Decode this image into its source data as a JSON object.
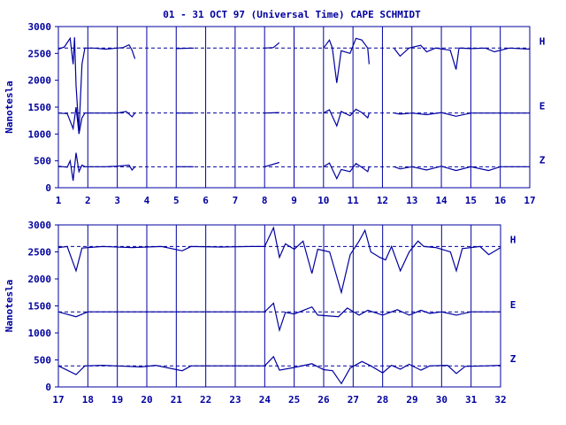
{
  "title": "01 - 31 OCT 97 (Universal Time) CAPE SCHMIDT",
  "colors": {
    "ink": "#0000a0",
    "background": "#ffffff"
  },
  "chart_data": [
    {
      "type": "line",
      "panel": "top",
      "ylabel": "Nanotesla",
      "ylim": [
        0,
        3000
      ],
      "yticks": [
        "0",
        "500",
        "1000",
        "1500",
        "2000",
        "2500",
        "3000"
      ],
      "xlim": [
        1,
        17
      ],
      "xticks": [
        "1",
        "2",
        "3",
        "4",
        "5",
        "6",
        "7",
        "8",
        "9",
        "10",
        "11",
        "12",
        "13",
        "14",
        "15",
        "16",
        "17"
      ],
      "grid": "vertical lines at each day",
      "reference_lines": [
        2600,
        1390,
        390
      ],
      "series": [
        {
          "name": "H",
          "baseline": 2600,
          "points": [
            [
              1,
              2580
            ],
            [
              1.2,
              2620
            ],
            [
              1.4,
              2780
            ],
            [
              1.5,
              2300
            ],
            [
              1.55,
              2800
            ],
            [
              1.6,
              1900
            ],
            [
              1.7,
              1050
            ],
            [
              1.8,
              2300
            ],
            [
              1.9,
              2600
            ],
            [
              2.2,
              2600
            ],
            [
              2.6,
              2580
            ],
            [
              3.0,
              2600
            ],
            [
              3.2,
              2610
            ],
            [
              3.4,
              2660
            ],
            [
              3.5,
              2560
            ],
            [
              3.6,
              2400
            ],
            [
              null,
              null
            ],
            [
              5,
              2590
            ],
            [
              5.6,
              2600
            ],
            [
              null,
              null
            ],
            [
              8,
              2600
            ],
            [
              8.3,
              2610
            ],
            [
              8.5,
              2700
            ],
            [
              null,
              null
            ],
            [
              10,
              2600
            ],
            [
              10.2,
              2750
            ],
            [
              10.3,
              2600
            ],
            [
              10.45,
              1950
            ],
            [
              10.6,
              2550
            ],
            [
              10.9,
              2500
            ],
            [
              11.1,
              2780
            ],
            [
              11.3,
              2750
            ],
            [
              11.5,
              2600
            ],
            [
              11.55,
              2300
            ],
            [
              null,
              null
            ],
            [
              12.4,
              2590
            ],
            [
              12.6,
              2450
            ],
            [
              12.9,
              2600
            ],
            [
              13.3,
              2650
            ],
            [
              13.5,
              2530
            ],
            [
              13.8,
              2600
            ],
            [
              14.3,
              2560
            ],
            [
              14.5,
              2200
            ],
            [
              14.6,
              2600
            ],
            [
              15,
              2590
            ],
            [
              15.5,
              2600
            ],
            [
              15.8,
              2530
            ],
            [
              16.3,
              2600
            ],
            [
              17,
              2580
            ]
          ]
        },
        {
          "name": "E",
          "baseline": 1390,
          "points": [
            [
              1,
              1390
            ],
            [
              1.3,
              1380
            ],
            [
              1.5,
              1100
            ],
            [
              1.6,
              1500
            ],
            [
              1.7,
              1000
            ],
            [
              1.8,
              1300
            ],
            [
              1.9,
              1390
            ],
            [
              2.4,
              1390
            ],
            [
              3.0,
              1390
            ],
            [
              3.3,
              1420
            ],
            [
              3.5,
              1320
            ],
            [
              3.6,
              1390
            ],
            [
              null,
              null
            ],
            [
              5,
              1390
            ],
            [
              5.6,
              1390
            ],
            [
              null,
              null
            ],
            [
              8,
              1390
            ],
            [
              8.5,
              1400
            ],
            [
              null,
              null
            ],
            [
              10,
              1390
            ],
            [
              10.2,
              1450
            ],
            [
              10.45,
              1150
            ],
            [
              10.6,
              1420
            ],
            [
              10.9,
              1340
            ],
            [
              11.1,
              1460
            ],
            [
              11.3,
              1400
            ],
            [
              11.5,
              1300
            ],
            [
              11.55,
              1390
            ],
            [
              null,
              null
            ],
            [
              12.4,
              1390
            ],
            [
              12.6,
              1370
            ],
            [
              13,
              1390
            ],
            [
              13.5,
              1360
            ],
            [
              14,
              1400
            ],
            [
              14.5,
              1330
            ],
            [
              15,
              1390
            ],
            [
              16,
              1390
            ],
            [
              17,
              1390
            ]
          ]
        },
        {
          "name": "Z",
          "baseline": 390,
          "points": [
            [
              1,
              400
            ],
            [
              1.3,
              380
            ],
            [
              1.4,
              500
            ],
            [
              1.5,
              130
            ],
            [
              1.6,
              650
            ],
            [
              1.7,
              300
            ],
            [
              1.8,
              420
            ],
            [
              1.9,
              390
            ],
            [
              2.6,
              390
            ],
            [
              3.0,
              400
            ],
            [
              3.4,
              420
            ],
            [
              3.5,
              330
            ],
            [
              3.6,
              390
            ],
            [
              null,
              null
            ],
            [
              5,
              390
            ],
            [
              5.6,
              390
            ],
            [
              null,
              null
            ],
            [
              8,
              390
            ],
            [
              8.5,
              470
            ],
            [
              null,
              null
            ],
            [
              10,
              390
            ],
            [
              10.2,
              460
            ],
            [
              10.45,
              170
            ],
            [
              10.6,
              340
            ],
            [
              10.9,
              300
            ],
            [
              11.1,
              450
            ],
            [
              11.3,
              380
            ],
            [
              11.5,
              300
            ],
            [
              11.55,
              390
            ],
            [
              null,
              null
            ],
            [
              12.4,
              390
            ],
            [
              12.6,
              350
            ],
            [
              13,
              390
            ],
            [
              13.5,
              330
            ],
            [
              14,
              400
            ],
            [
              14.5,
              320
            ],
            [
              15,
              390
            ],
            [
              15.6,
              320
            ],
            [
              16,
              390
            ],
            [
              17,
              390
            ]
          ]
        }
      ]
    },
    {
      "type": "line",
      "panel": "bottom",
      "ylabel": "Nanotesla",
      "ylim": [
        0,
        3000
      ],
      "yticks": [
        "0",
        "500",
        "1000",
        "1500",
        "2000",
        "2500",
        "3000"
      ],
      "xlim": [
        17,
        32
      ],
      "xticks": [
        "17",
        "18",
        "19",
        "20",
        "21",
        "22",
        "23",
        "24",
        "25",
        "26",
        "27",
        "28",
        "29",
        "30",
        "31",
        "32"
      ],
      "grid": "vertical lines at each day",
      "reference_lines": [
        2600,
        1390,
        390
      ],
      "series": [
        {
          "name": "H",
          "baseline": 2600,
          "points": [
            [
              17,
              2580
            ],
            [
              17.3,
              2600
            ],
            [
              17.6,
              2150
            ],
            [
              17.8,
              2570
            ],
            [
              18.5,
              2600
            ],
            [
              19.5,
              2580
            ],
            [
              20.5,
              2600
            ],
            [
              21.2,
              2520
            ],
            [
              21.5,
              2600
            ],
            [
              22.5,
              2590
            ],
            [
              23.5,
              2600
            ],
            [
              24.0,
              2600
            ],
            [
              24.3,
              2950
            ],
            [
              24.5,
              2400
            ],
            [
              24.7,
              2650
            ],
            [
              25.0,
              2550
            ],
            [
              25.3,
              2700
            ],
            [
              25.6,
              2100
            ],
            [
              25.8,
              2550
            ],
            [
              26.2,
              2500
            ],
            [
              26.6,
              1750
            ],
            [
              26.9,
              2450
            ],
            [
              27.2,
              2700
            ],
            [
              27.4,
              2900
            ],
            [
              27.6,
              2500
            ],
            [
              27.9,
              2400
            ],
            [
              28.1,
              2350
            ],
            [
              28.3,
              2600
            ],
            [
              28.6,
              2150
            ],
            [
              28.9,
              2500
            ],
            [
              29.2,
              2700
            ],
            [
              29.4,
              2600
            ],
            [
              29.8,
              2580
            ],
            [
              30.3,
              2500
            ],
            [
              30.5,
              2150
            ],
            [
              30.7,
              2560
            ],
            [
              31.3,
              2600
            ],
            [
              31.6,
              2450
            ],
            [
              32,
              2580
            ]
          ]
        },
        {
          "name": "E",
          "baseline": 1390,
          "points": [
            [
              17,
              1390
            ],
            [
              17.6,
              1300
            ],
            [
              18,
              1390
            ],
            [
              20,
              1390
            ],
            [
              22,
              1390
            ],
            [
              24,
              1390
            ],
            [
              24.3,
              1550
            ],
            [
              24.5,
              1050
            ],
            [
              24.7,
              1380
            ],
            [
              25,
              1350
            ],
            [
              25.6,
              1480
            ],
            [
              25.8,
              1330
            ],
            [
              26.5,
              1300
            ],
            [
              26.8,
              1460
            ],
            [
              27.2,
              1330
            ],
            [
              27.5,
              1420
            ],
            [
              28,
              1330
            ],
            [
              28.5,
              1430
            ],
            [
              28.9,
              1330
            ],
            [
              29.3,
              1420
            ],
            [
              29.6,
              1360
            ],
            [
              30,
              1390
            ],
            [
              30.5,
              1330
            ],
            [
              31,
              1390
            ],
            [
              32,
              1390
            ]
          ]
        },
        {
          "name": "Z",
          "baseline": 390,
          "points": [
            [
              17,
              390
            ],
            [
              17.6,
              230
            ],
            [
              17.9,
              390
            ],
            [
              18.5,
              400
            ],
            [
              19.8,
              370
            ],
            [
              20.3,
              400
            ],
            [
              21.2,
              300
            ],
            [
              21.5,
              390
            ],
            [
              23,
              390
            ],
            [
              24,
              390
            ],
            [
              24.3,
              560
            ],
            [
              24.5,
              310
            ],
            [
              25,
              360
            ],
            [
              25.6,
              430
            ],
            [
              26.0,
              320
            ],
            [
              26.3,
              300
            ],
            [
              26.6,
              60
            ],
            [
              26.9,
              350
            ],
            [
              27.3,
              470
            ],
            [
              27.6,
              390
            ],
            [
              28.0,
              260
            ],
            [
              28.3,
              400
            ],
            [
              28.6,
              330
            ],
            [
              28.9,
              420
            ],
            [
              29.3,
              310
            ],
            [
              29.6,
              390
            ],
            [
              30.2,
              400
            ],
            [
              30.5,
              250
            ],
            [
              30.8,
              380
            ],
            [
              31.5,
              390
            ],
            [
              32,
              400
            ]
          ]
        }
      ]
    }
  ]
}
